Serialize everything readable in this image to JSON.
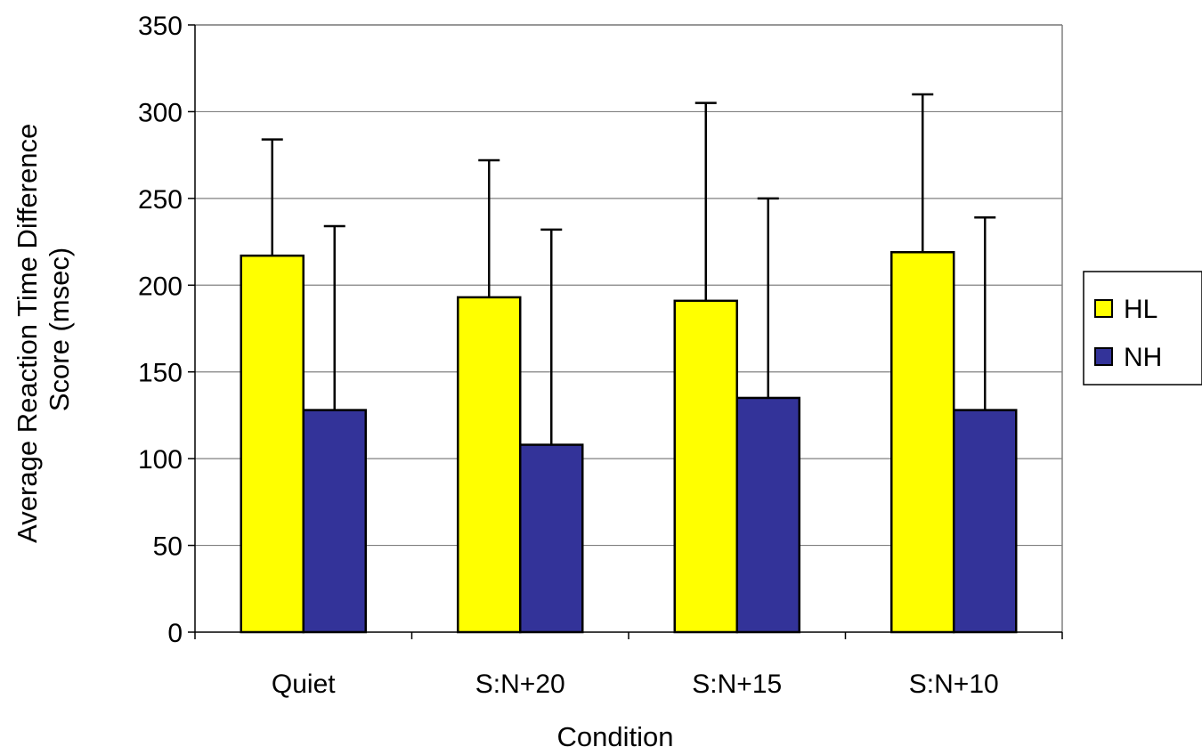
{
  "chart_data": {
    "type": "bar",
    "title": "",
    "xlabel": "Condition",
    "ylabel_lines": [
      "Average Reaction Time Difference",
      "Score (msec)"
    ],
    "categories": [
      "Quiet",
      "S:N+20",
      "S:N+15",
      "S:N+10"
    ],
    "ylim": [
      0,
      350
    ],
    "yticks": [
      0,
      50,
      100,
      150,
      200,
      250,
      300,
      350
    ],
    "grid": true,
    "legend_position": "right",
    "series": [
      {
        "name": "HL",
        "color": "#ffff00",
        "values": [
          217,
          193,
          191,
          219
        ],
        "error_top": [
          284,
          272,
          305,
          310
        ]
      },
      {
        "name": "NH",
        "color": "#333399",
        "values": [
          128,
          108,
          135,
          128
        ],
        "error_top": [
          234,
          232,
          250,
          239
        ]
      }
    ]
  }
}
